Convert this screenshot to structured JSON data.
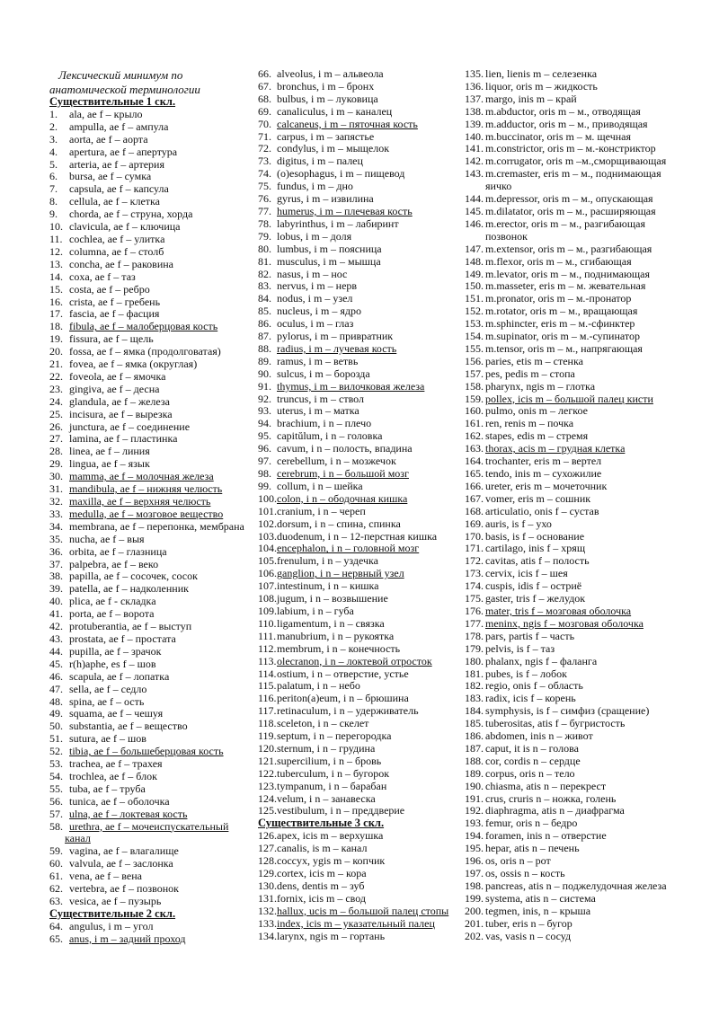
{
  "title": [
    "Лексический минимум по",
    "анатомической терминологии"
  ],
  "columns": [
    [
      {
        "h": "Существительные 1 скл."
      },
      {
        "n": "1.",
        "t": "ala, ae f – крыло"
      },
      {
        "n": "2.",
        "t": "ampulla, ae f – ампула"
      },
      {
        "n": "3.",
        "t": "aorta, ae f – аорта"
      },
      {
        "n": "4.",
        "t": "apertura, ae f – апертура"
      },
      {
        "n": "5.",
        "t": "arteria, ae f – артерия"
      },
      {
        "n": "6.",
        "t": "bursa, ae f – сумка"
      },
      {
        "n": "7.",
        "t": "capsula, ae f – капсула"
      },
      {
        "n": "8.",
        "t": "cellula, ae f – клетка"
      },
      {
        "n": "9.",
        "t": "chorda, ae f – струна, хорда"
      },
      {
        "n": "10.",
        "t": "clavicula, ae f – ключица"
      },
      {
        "n": "11.",
        "t": "cochlea, ae f – улитка"
      },
      {
        "n": "12.",
        "t": "columna, ae f – столб"
      },
      {
        "n": "13.",
        "t": "concha, ae f – раковина"
      },
      {
        "n": "14.",
        "t": "coxa, ae f – таз"
      },
      {
        "n": "15.",
        "t": "costa, ae f – ребро"
      },
      {
        "n": "16.",
        "t": "crista, ae f – гребень"
      },
      {
        "n": "17.",
        "t": "fascia, ae f – фасция"
      },
      {
        "n": "18.",
        "t": "fibula, ae f – малоберцовая кость",
        "u": true
      },
      {
        "n": "19.",
        "t": "fissura, ae f – щель"
      },
      {
        "n": "20.",
        "t": "fossa, ae f – ямка (продолговатая)"
      },
      {
        "n": "21.",
        "t": "fovea, ae f – ямка (округлая)"
      },
      {
        "n": "22.",
        "t": "foveola, ae f – ямочка"
      },
      {
        "n": "23.",
        "t": "gingiva, ae f – десна"
      },
      {
        "n": "24.",
        "t": "glandula, ae f – железа"
      },
      {
        "n": "25.",
        "t": "incisura, ae f – вырезка"
      },
      {
        "n": "26.",
        "t": "junctura, ae f – соединение"
      },
      {
        "n": "27.",
        "t": "lamina, ae f – пластинка"
      },
      {
        "n": "28.",
        "t": "linea, ae f – линия"
      },
      {
        "n": "29.",
        "t": "lingua, ae f – язык"
      },
      {
        "n": "30.",
        "t": "mamma, ae f – молочная железа",
        "u": true
      },
      {
        "n": "31.",
        "t": "mandibula, ae f – нижняя челюсть",
        "u": true
      },
      {
        "n": "32.",
        "t": "maxilla, ae f – верхняя челюсть",
        "u": true
      },
      {
        "n": "33.",
        "t": "medulla, ae f – мозговое вещество",
        "u": true
      },
      {
        "n": "34.",
        "t": "membrana, ae f – перепонка, мембрана"
      },
      {
        "n": "35.",
        "t": "nucha, ae f – выя"
      },
      {
        "n": "36.",
        "t": "orbita, ae f – глазница"
      },
      {
        "n": "37.",
        "t": "palpebra, ae f – веко"
      },
      {
        "n": "38.",
        "t": "papilla, ae f – сосочек, сосок"
      },
      {
        "n": "39.",
        "t": "patella, ae f – надколенник"
      },
      {
        "n": "40.",
        "t": "plica, ae f - складка"
      },
      {
        "n": "41.",
        "t": "porta, ae f – ворота"
      },
      {
        "n": "42.",
        "t": "protuberantia, ae f – выступ"
      },
      {
        "n": "43.",
        "t": "prostata, ae f – простата"
      },
      {
        "n": "44.",
        "t": "pupilla, ae f – зрачок"
      },
      {
        "n": "45.",
        "t": "r(h)aphe, es f – шов"
      },
      {
        "n": "46.",
        "t": "scapula, ae f – лопатка"
      },
      {
        "n": "47.",
        "t": "sella, ae f – седло"
      },
      {
        "n": "48.",
        "t": "spina, ae f – ость"
      },
      {
        "n": "49.",
        "t": "squama, ae f – чешуя"
      },
      {
        "n": "50.",
        "t": "substantia, ae f – вещество"
      },
      {
        "n": "51.",
        "t": "sutura, ae f – шов"
      },
      {
        "n": "52.",
        "t": "tibia, ae f – большеберцовая кость",
        "u": true
      },
      {
        "n": "53.",
        "t": "trachea, ae f – трахея"
      },
      {
        "n": "54.",
        "t": "trochlea, ae f – блок"
      },
      {
        "n": "55.",
        "t": "tuba, ae f – труба"
      },
      {
        "n": "56.",
        "t": "tunica, ae f – оболочка"
      },
      {
        "n": "57.",
        "t": "ulna, ae f – локтевая кость",
        "u": true
      },
      {
        "n": "58.",
        "t": "urethra, ae f – мочеиспускательный",
        "t2": "канал",
        "u": true
      },
      {
        "n": "59.",
        "t": "vagina, ae f – влагалище"
      },
      {
        "n": "60.",
        "t": "valvula, ae f – заслонка"
      },
      {
        "n": "61.",
        "t": "vena, ae f – вена"
      },
      {
        "n": "62.",
        "t": "vertebra, ae f – позвонок"
      },
      {
        "n": "63.",
        "t": "vesica, ae f – пузырь"
      },
      {
        "h": "Существительные 2 скл."
      },
      {
        "n": "64.",
        "t": "angulus, i m – угол"
      },
      {
        "n": "65.",
        "t": "anus, i m – задний проход",
        "u": true
      }
    ],
    [
      {
        "n": "66.",
        "t": "alveolus, i m – альвеола"
      },
      {
        "n": "67.",
        "t": "bronchus, i m – бронх"
      },
      {
        "n": "68.",
        "t": "bulbus, i m – луковица"
      },
      {
        "n": "69.",
        "t": "canaliculus, i m – каналец"
      },
      {
        "n": "70.",
        "t": "calcaneus, i m – пяточная кость",
        "u": true
      },
      {
        "n": "71.",
        "t": "carpus, i m – запястье"
      },
      {
        "n": "72.",
        "t": "condylus, i m – мыщелок"
      },
      {
        "n": "73.",
        "t": "digitus, i m – палец"
      },
      {
        "n": "74.",
        "t": "(o)esophagus, i m – пищевод"
      },
      {
        "n": "75.",
        "t": "fundus, i m – дно"
      },
      {
        "n": "76.",
        "t": "gyrus, i m – извилина"
      },
      {
        "n": "77.",
        "t": "humerus, i m – плечевая кость",
        "u": true
      },
      {
        "n": "78.",
        "t": "labyrinthus, i m – лабиринт"
      },
      {
        "n": "79.",
        "t": "lobus, i m – доля"
      },
      {
        "n": "80.",
        "t": "lumbus, i m – поясница"
      },
      {
        "n": "81.",
        "t": "musculus, i m – мышца"
      },
      {
        "n": "82.",
        "t": "nasus, i m – нос"
      },
      {
        "n": "83.",
        "t": "nervus, i m – нерв"
      },
      {
        "n": "84.",
        "t": "nodus, i m – узел"
      },
      {
        "n": "85.",
        "t": "nucleus, i m – ядро"
      },
      {
        "n": "86.",
        "t": "oculus, i m – глаз"
      },
      {
        "n": "87.",
        "t": "pylorus, i m – привратник"
      },
      {
        "n": "88.",
        "t": "radius, i m – лучевая кость",
        "u": true
      },
      {
        "n": "89.",
        "t": "ramus, i m – ветвь"
      },
      {
        "n": "90.",
        "t": "sulcus, i m – борозда"
      },
      {
        "n": "91.",
        "t": "thymus, i m – вилочковая железа",
        "u": true
      },
      {
        "n": "92.",
        "t": "truncus, i m – ствол"
      },
      {
        "n": "93.",
        "t": "uterus, i m – матка"
      },
      {
        "n": "94.",
        "t": "brachium, i n – плечо"
      },
      {
        "n": "95.",
        "t": "capitŭlum, i n – головка"
      },
      {
        "n": "96.",
        "t": "cavum, i n – полость, впадина"
      },
      {
        "n": "97.",
        "t": "cerebellum, i n – мозжечок"
      },
      {
        "n": "98.",
        "t": "cerebrum, i n – большой мозг",
        "u": true
      },
      {
        "n": "99.",
        "t": "collum, i n – шейка"
      },
      {
        "n": "100.",
        "t": "colon, i n – ободочная кишка",
        "u": true
      },
      {
        "n": "101.",
        "t": "cranium, i n – череп"
      },
      {
        "n": "102.",
        "t": "dorsum, i n – спина, спинка"
      },
      {
        "n": "103.",
        "t": "duodenum, i n – 12-перстная кишка"
      },
      {
        "n": "104.",
        "t": "encephalon, i n – головной мозг",
        "u": true
      },
      {
        "n": "105.",
        "t": "frenulum, i n – уздечка"
      },
      {
        "n": "106.",
        "t": "ganglion, i n – нервный узел",
        "u": true
      },
      {
        "n": "107.",
        "t": "intestinum, i n – кишка"
      },
      {
        "n": "108.",
        "t": "jugum, i n – возвышение"
      },
      {
        "n": "109.",
        "t": "labium, i n – губа"
      },
      {
        "n": "110.",
        "t": "ligamentum, i n – связка"
      },
      {
        "n": "111.",
        "t": "manubrium, i n – рукоятка"
      },
      {
        "n": "112.",
        "t": "membrum, i n – конечность"
      },
      {
        "n": "113.",
        "t": "olecranon, i n – локтевой отросток",
        "u": true
      },
      {
        "n": "114.",
        "t": "ostium, i n – отверстие, устье"
      },
      {
        "n": "115.",
        "t": "palatum, i n – небо"
      },
      {
        "n": "116.",
        "t": "periton(a)eum, i n – брюшина"
      },
      {
        "n": "117.",
        "t": "retinaculum, i n – удерживатель"
      },
      {
        "n": "118.",
        "t": "sceleton, i n – скелет"
      },
      {
        "n": "119.",
        "t": "septum, i n – перегородка"
      },
      {
        "n": "120.",
        "t": "sternum, i n – грудина"
      },
      {
        "n": "121.",
        "t": "supercilium, i n – бровь"
      },
      {
        "n": "122.",
        "t": "tuberculum, i n – бугорок"
      },
      {
        "n": "123.",
        "t": "tympanum, i n – барабан"
      },
      {
        "n": "124.",
        "t": "velum, i n – занавеска"
      },
      {
        "n": "125.",
        "t": "vestibulum, i n – преддверие"
      },
      {
        "h": "Существительные 3 скл."
      },
      {
        "n": "126.",
        "t": "apex, icis m – верхушка"
      },
      {
        "n": "127.",
        "t": "canalis, is m – канал"
      },
      {
        "n": "128.",
        "t": "coccyx, ygis m – копчик"
      },
      {
        "n": "129.",
        "t": "cortex, icis m – кора"
      },
      {
        "n": "130.",
        "t": "dens, dentis m – зуб"
      },
      {
        "n": "131.",
        "t": "fornix, icis m – свод"
      },
      {
        "n": "132.",
        "t": "hallux, ucis m – большой палец стопы",
        "u": true
      },
      {
        "n": "133.",
        "t": "index, icis m – указательный палец",
        "u": true
      },
      {
        "n": "134.",
        "t": "larynx, ngis m – гортань"
      }
    ],
    [
      {
        "n": "135.",
        "t": "lien, lienis m – селезенка"
      },
      {
        "n": "136.",
        "t": "liquor, oris m – жидкость"
      },
      {
        "n": "137.",
        "t": "margo, inis m – край"
      },
      {
        "n": "138.",
        "t": "m.abductor, oris m – м., отводящая"
      },
      {
        "n": "139.",
        "t": "m.adductor, oris m – м., приводящая"
      },
      {
        "n": "140.",
        "t": "m.buccinator, oris m – м. щечная"
      },
      {
        "n": "141.",
        "t": "m.constrictor, oris m – м.-констриктор"
      },
      {
        "n": "142.",
        "t": "m.corrugator, oris m –м.,сморщивающая"
      },
      {
        "n": "143.",
        "t": "m.cremaster, eris m – м., поднимающая",
        "t2": "яичко"
      },
      {
        "n": "144.",
        "t": "m.depressor, oris m – м., опускающая"
      },
      {
        "n": "145.",
        "t": "m.dilatator, oris m – м., расширяющая"
      },
      {
        "n": "146.",
        "t": "m.erector, oris m – м., разгибающая",
        "t2": "позвонок"
      },
      {
        "n": "147.",
        "t": "m.extensor, oris m – м., разгибающая"
      },
      {
        "n": "148.",
        "t": "m.flexor, oris m – м., сгибающая"
      },
      {
        "n": "149.",
        "t": "m.levator, oris m – м., поднимающая"
      },
      {
        "n": "150.",
        "t": "m.masseter, eris m – м. жевательная"
      },
      {
        "n": "151.",
        "t": "m.pronator, oris m – м.-пронатор"
      },
      {
        "n": "152.",
        "t": "m.rotator, oris m – м., вращающая"
      },
      {
        "n": "153.",
        "t": "m.sphincter, eris m – м.-сфинктер"
      },
      {
        "n": "154.",
        "t": "m.supinator, oris m – м.-супинатор"
      },
      {
        "n": "155.",
        "t": "m.tensor, oris m – м., напрягающая"
      },
      {
        "n": "156.",
        "t": "paries, etis m – стенка"
      },
      {
        "n": "157.",
        "t": "pes, pedis m – стопа"
      },
      {
        "n": "158.",
        "t": "pharynx, ngis m – глотка"
      },
      {
        "n": "159.",
        "t": "pollex, icis m – большой палец кисти",
        "u": true
      },
      {
        "n": "160.",
        "t": "pulmo, onis m – легкое"
      },
      {
        "n": "161.",
        "t": "ren, renis m – почка"
      },
      {
        "n": "162.",
        "t": "stapes, edis m – стремя"
      },
      {
        "n": "163.",
        "t": "thorax, acis m – грудная клетка",
        "u": true
      },
      {
        "n": "164.",
        "t": "trochanter, eris m – вертел"
      },
      {
        "n": "165.",
        "t": "tendo, inis m – сухожилие"
      },
      {
        "n": "166.",
        "t": "ureter, eris m – мочеточник"
      },
      {
        "n": "167.",
        "t": "vomer, eris m – сошник"
      },
      {
        "n": "168.",
        "t": "articulatio, onis f – сустав"
      },
      {
        "n": "169.",
        "t": "auris, is f – ухо"
      },
      {
        "n": "170.",
        "t": "basis, is f – основание"
      },
      {
        "n": "171.",
        "t": "cartilago, inis f – хрящ"
      },
      {
        "n": "172.",
        "t": "cavitas, atis f – полость"
      },
      {
        "n": "173.",
        "t": "cervix, icis f – шея"
      },
      {
        "n": "174.",
        "t": "cuspis, idis f – остриё"
      },
      {
        "n": "175.",
        "t": "gaster, tris f – желудок"
      },
      {
        "n": "176.",
        "t": "mater, tris f – мозговая оболочка",
        "u": true
      },
      {
        "n": "177.",
        "t": "meninx, ngis f – мозговая оболочка",
        "u": true
      },
      {
        "n": "178.",
        "t": "pars, partis f – часть"
      },
      {
        "n": "179.",
        "t": "pelvis, is f – таз"
      },
      {
        "n": "180.",
        "t": "phalanx, ngis f – фаланга"
      },
      {
        "n": "181.",
        "t": "pubes, is f – лобок"
      },
      {
        "n": "182.",
        "t": "regio, onis f – область"
      },
      {
        "n": "183.",
        "t": "radix, icis f – корень"
      },
      {
        "n": "184.",
        "t": "symphysis, is f – симфиз (сращение)"
      },
      {
        "n": "185.",
        "t": "tuberositas, atis f – бугристость"
      },
      {
        "n": "186.",
        "t": "abdomen, inis n – живот"
      },
      {
        "n": "187.",
        "t": "caput, it is n – голова"
      },
      {
        "n": "188.",
        "t": "cor, cordis n – сердце"
      },
      {
        "n": "189.",
        "t": "corpus, oris n – тело"
      },
      {
        "n": "190.",
        "t": "chiasma, atis n – перекрест"
      },
      {
        "n": "191.",
        "t": "crus, cruris n – ножка, голень"
      },
      {
        "n": "192.",
        "t": "diaphragma, atis n – диафрагма"
      },
      {
        "n": "193.",
        "t": "femur, oris n – бедро"
      },
      {
        "n": "194.",
        "t": "foramen, inis n – отверстие"
      },
      {
        "n": "195.",
        "t": "hepar, atis n – печень"
      },
      {
        "n": "196.",
        "t": "os, oris n – рот"
      },
      {
        "n": "197.",
        "t": "os, ossis n – кость"
      },
      {
        "n": "198.",
        "t": "pancreas, atis n – поджелудочная железа"
      },
      {
        "n": "199.",
        "t": "systema, atis n – система"
      },
      {
        "n": "200.",
        "t": "tegmen, inis, n – крыша"
      },
      {
        "n": "201.",
        "t": "tuber, eris n – бугор"
      },
      {
        "n": "202.",
        "t": "vas, vasis n – сосуд"
      }
    ]
  ]
}
